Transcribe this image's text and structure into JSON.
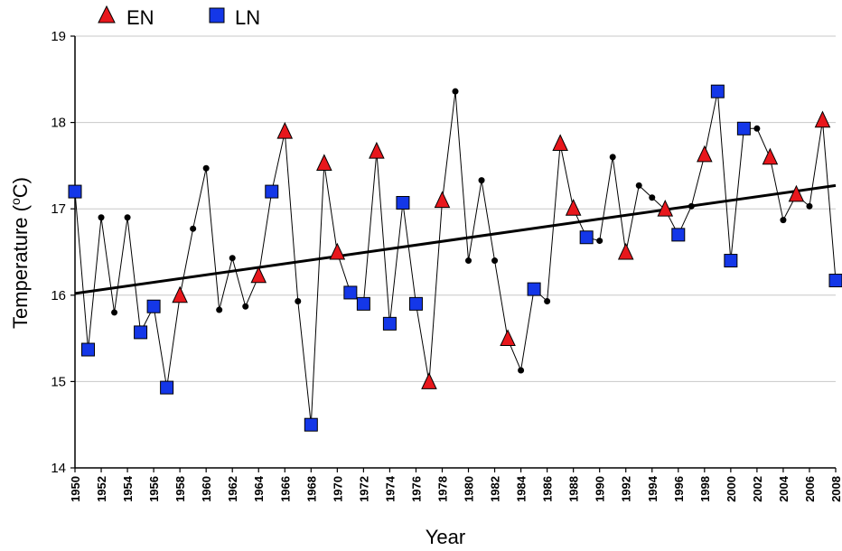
{
  "chart_data": {
    "type": "line",
    "xlabel": "Year",
    "ylabel_prefix": "Temperature (",
    "ylabel_sup": "o",
    "ylabel_suffix": "C)",
    "xlim": [
      1950,
      2008
    ],
    "ylim": [
      14,
      19
    ],
    "yticks": [
      "14",
      "15",
      "16",
      "17",
      "18",
      "19"
    ],
    "xticks": [
      "1950",
      "1952",
      "1954",
      "1956",
      "1958",
      "1960",
      "1962",
      "1964",
      "1966",
      "1968",
      "1970",
      "1972",
      "1974",
      "1976",
      "1978",
      "1980",
      "1982",
      "1984",
      "1986",
      "1988",
      "1990",
      "1992",
      "1994",
      "1996",
      "1998",
      "2000",
      "2002",
      "2004",
      "2006",
      "2008"
    ],
    "grid": "horizontal",
    "legend_placement": "top-left",
    "legend": [
      {
        "key": "EN",
        "label": "EN",
        "marker": "triangle",
        "color": "#e8171c"
      },
      {
        "key": "LN",
        "label": "LN",
        "marker": "square",
        "color": "#1437e8"
      }
    ],
    "neutral_marker": {
      "marker": "circle",
      "color": "#000000"
    },
    "series": [
      {
        "points": [
          {
            "x": 1950,
            "y": 17.2,
            "type": "LN"
          },
          {
            "x": 1951,
            "y": 15.37,
            "type": "LN"
          },
          {
            "x": 1952,
            "y": 16.9,
            "type": "N"
          },
          {
            "x": 1953,
            "y": 15.8,
            "type": "N"
          },
          {
            "x": 1954,
            "y": 16.9,
            "type": "N"
          },
          {
            "x": 1955,
            "y": 15.57,
            "type": "LN"
          },
          {
            "x": 1956,
            "y": 15.87,
            "type": "LN"
          },
          {
            "x": 1957,
            "y": 14.93,
            "type": "LN"
          },
          {
            "x": 1958,
            "y": 15.99,
            "type": "EN"
          },
          {
            "x": 1959,
            "y": 16.77,
            "type": "N"
          },
          {
            "x": 1960,
            "y": 17.47,
            "type": "N"
          },
          {
            "x": 1961,
            "y": 15.83,
            "type": "N"
          },
          {
            "x": 1962,
            "y": 16.43,
            "type": "N"
          },
          {
            "x": 1963,
            "y": 15.87,
            "type": "N"
          },
          {
            "x": 1964,
            "y": 16.22,
            "type": "EN"
          },
          {
            "x": 1965,
            "y": 17.2,
            "type": "LN"
          },
          {
            "x": 1966,
            "y": 17.89,
            "type": "EN"
          },
          {
            "x": 1967,
            "y": 15.93,
            "type": "N"
          },
          {
            "x": 1968,
            "y": 14.5,
            "type": "LN"
          },
          {
            "x": 1969,
            "y": 17.52,
            "type": "EN"
          },
          {
            "x": 1970,
            "y": 16.49,
            "type": "EN"
          },
          {
            "x": 1971,
            "y": 16.03,
            "type": "LN"
          },
          {
            "x": 1972,
            "y": 15.9,
            "type": "LN"
          },
          {
            "x": 1973,
            "y": 17.66,
            "type": "EN"
          },
          {
            "x": 1974,
            "y": 15.67,
            "type": "LN"
          },
          {
            "x": 1975,
            "y": 17.07,
            "type": "LN"
          },
          {
            "x": 1976,
            "y": 15.9,
            "type": "LN"
          },
          {
            "x": 1977,
            "y": 14.99,
            "type": "EN"
          },
          {
            "x": 1978,
            "y": 17.09,
            "type": "EN"
          },
          {
            "x": 1979,
            "y": 18.36,
            "type": "N"
          },
          {
            "x": 1980,
            "y": 16.4,
            "type": "N"
          },
          {
            "x": 1981,
            "y": 17.33,
            "type": "N"
          },
          {
            "x": 1982,
            "y": 16.4,
            "type": "N"
          },
          {
            "x": 1983,
            "y": 15.49,
            "type": "EN"
          },
          {
            "x": 1984,
            "y": 15.13,
            "type": "N"
          },
          {
            "x": 1985,
            "y": 16.07,
            "type": "LN"
          },
          {
            "x": 1986,
            "y": 15.93,
            "type": "N"
          },
          {
            "x": 1987,
            "y": 17.75,
            "type": "EN"
          },
          {
            "x": 1988,
            "y": 17.0,
            "type": "EN"
          },
          {
            "x": 1989,
            "y": 16.67,
            "type": "LN"
          },
          {
            "x": 1990,
            "y": 16.63,
            "type": "N"
          },
          {
            "x": 1991,
            "y": 17.6,
            "type": "N"
          },
          {
            "x": 1992,
            "y": 16.49,
            "type": "EN"
          },
          {
            "x": 1993,
            "y": 17.27,
            "type": "N"
          },
          {
            "x": 1994,
            "y": 17.13,
            "type": "N"
          },
          {
            "x": 1995,
            "y": 16.99,
            "type": "EN"
          },
          {
            "x": 1996,
            "y": 16.7,
            "type": "LN"
          },
          {
            "x": 1997,
            "y": 17.03,
            "type": "N"
          },
          {
            "x": 1998,
            "y": 17.62,
            "type": "EN"
          },
          {
            "x": 1999,
            "y": 18.36,
            "type": "LN"
          },
          {
            "x": 2000,
            "y": 16.4,
            "type": "LN"
          },
          {
            "x": 2001,
            "y": 17.93,
            "type": "LN"
          },
          {
            "x": 2002,
            "y": 17.93,
            "type": "N"
          },
          {
            "x": 2003,
            "y": 17.59,
            "type": "EN"
          },
          {
            "x": 2004,
            "y": 16.87,
            "type": "N"
          },
          {
            "x": 2005,
            "y": 17.16,
            "type": "EN"
          },
          {
            "x": 2006,
            "y": 17.03,
            "type": "N"
          },
          {
            "x": 2007,
            "y": 18.02,
            "type": "EN"
          },
          {
            "x": 2008,
            "y": 16.17,
            "type": "LN"
          }
        ]
      }
    ],
    "trendline": {
      "type": "linear",
      "start": {
        "x": 1950,
        "y": 16.02
      },
      "end": {
        "x": 2008,
        "y": 17.27
      }
    }
  }
}
